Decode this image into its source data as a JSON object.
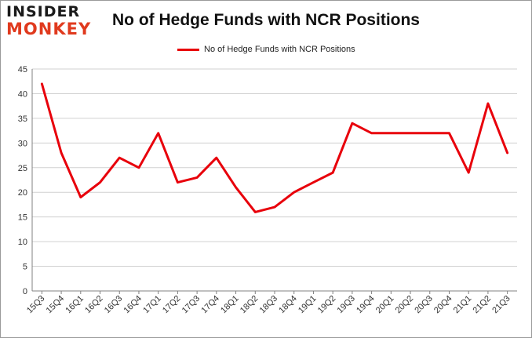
{
  "logo": {
    "line1": "INSIDER",
    "line2": "MONKEY"
  },
  "colors": {
    "series": "#e8000b",
    "grid": "#d0d0d0",
    "axis": "#808080",
    "logo_accent": "#e03a1e"
  },
  "chart_data": {
    "type": "line",
    "title": "No of Hedge Funds with NCR Positions",
    "xlabel": "",
    "ylabel": "",
    "ylim": [
      0,
      45
    ],
    "yticks": [
      0,
      5,
      10,
      15,
      20,
      25,
      30,
      35,
      40,
      45
    ],
    "grid": true,
    "legend_position": "top-center",
    "categories": [
      "15Q3",
      "15Q4",
      "16Q1",
      "16Q2",
      "16Q3",
      "16Q4",
      "17Q1",
      "17Q2",
      "17Q3",
      "17Q4",
      "18Q1",
      "18Q2",
      "18Q3",
      "18Q4",
      "19Q1",
      "19Q2",
      "19Q3",
      "19Q4",
      "20Q1",
      "20Q2",
      "20Q3",
      "20Q4",
      "21Q1",
      "21Q2",
      "21Q3"
    ],
    "series": [
      {
        "name": "No of Hedge Funds with NCR Positions",
        "values": [
          42,
          28,
          19,
          22,
          27,
          25,
          32,
          22,
          23,
          27,
          21,
          16,
          17,
          20,
          22,
          24,
          34,
          32,
          32,
          32,
          32,
          32,
          24,
          38,
          28
        ]
      }
    ]
  }
}
